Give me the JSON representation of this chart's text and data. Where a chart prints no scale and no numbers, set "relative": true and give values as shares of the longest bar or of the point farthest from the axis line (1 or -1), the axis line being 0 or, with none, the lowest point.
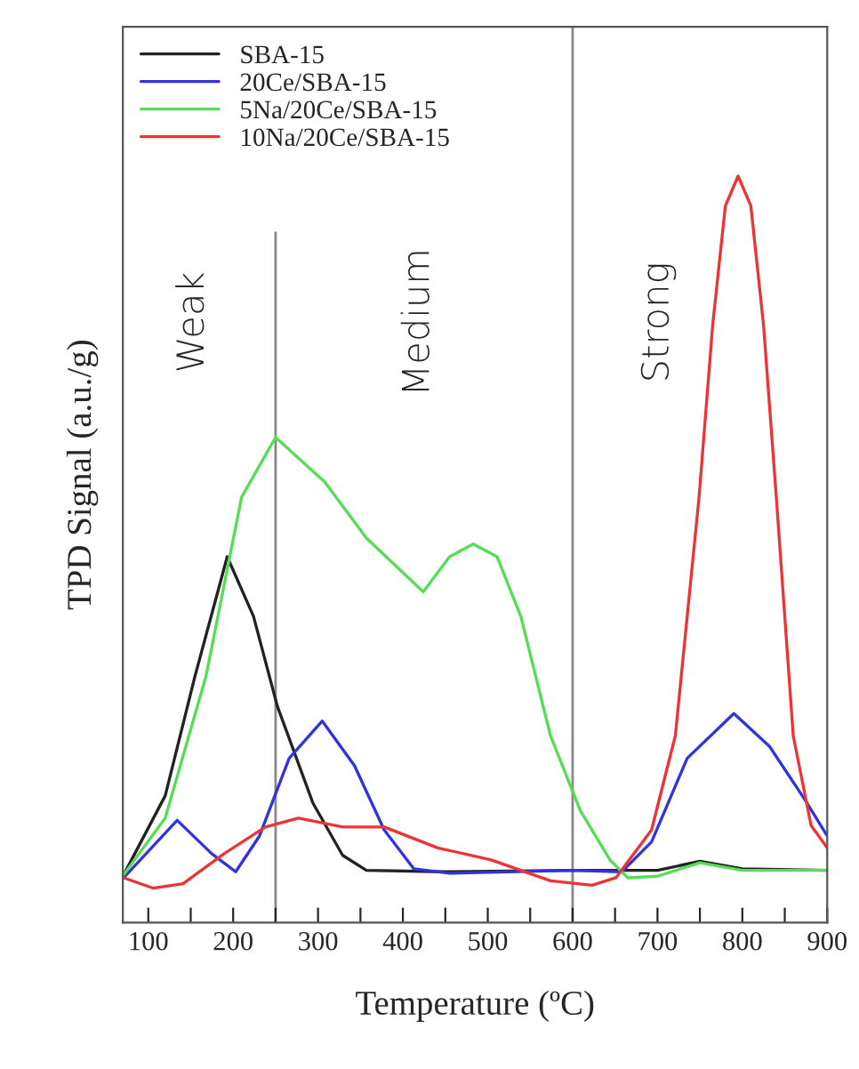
{
  "chart_data": {
    "type": "line",
    "xlabel": "Temperature (ºC)",
    "ylabel": "TPD Signal (a.u./g)",
    "relative": true,
    "xlim": [
      70,
      900
    ],
    "xticks": [
      100,
      {
        "value": 150,
        "label": null
      },
      200,
      {
        "value": 250,
        "label": null
      },
      300,
      {
        "value": 350,
        "label": null
      },
      400,
      {
        "value": 450,
        "label": null
      },
      500,
      {
        "value": 550,
        "label": null
      },
      600,
      {
        "value": 650,
        "label": null
      },
      700,
      {
        "value": 750,
        "label": null
      },
      800,
      {
        "value": 850,
        "label": null
      },
      900
    ],
    "tick_labels": "x",
    "legend": "top left",
    "grid": false,
    "marker": "none",
    "line_style": "solid",
    "series": [
      {
        "name": "SBA-15",
        "color": "#222222",
        "x": [
          71,
          120,
          155,
          193,
          224,
          252,
          294,
          329,
          357,
          450,
          600,
          700,
          750,
          800,
          900
        ],
        "values": [
          0.064,
          0.17,
          0.33,
          0.49,
          0.41,
          0.29,
          0.16,
          0.09,
          0.07,
          0.068,
          0.07,
          0.07,
          0.082,
          0.072,
          0.07
        ]
      },
      {
        "name": "20Ce/SBA-15",
        "color": "#3333dd",
        "x": [
          71,
          134,
          175,
          203,
          231,
          266,
          305,
          343,
          378,
          413,
          455,
          600,
          658,
          693,
          735,
          790,
          832,
          874,
          900
        ],
        "values": [
          0.06,
          0.137,
          0.092,
          0.068,
          0.116,
          0.22,
          0.27,
          0.21,
          0.124,
          0.072,
          0.066,
          0.07,
          0.068,
          0.108,
          0.22,
          0.28,
          0.236,
          0.164,
          0.116
        ]
      },
      {
        "name": "5Na/20Ce/SBA-15",
        "color": "#55dd55",
        "x": [
          71,
          120,
          168,
          210,
          250,
          308,
          357,
          424,
          455,
          483,
          511,
          539,
          574,
          609,
          644,
          665,
          700,
          750,
          800,
          900
        ],
        "values": [
          0.064,
          0.14,
          0.33,
          0.57,
          0.65,
          0.59,
          0.515,
          0.443,
          0.49,
          0.507,
          0.49,
          0.41,
          0.25,
          0.15,
          0.084,
          0.06,
          0.062,
          0.08,
          0.07,
          0.07
        ]
      },
      {
        "name": "10Na/20Ce/SBA-15",
        "color": "#ee3333",
        "x": [
          71,
          106,
          141,
          189,
          238,
          277,
          329,
          378,
          441,
          504,
          574,
          623,
          651,
          693,
          721,
          749,
          765,
          780,
          795,
          810,
          825,
          840,
          860,
          881,
          900
        ],
        "values": [
          0.06,
          0.046,
          0.052,
          0.092,
          0.128,
          0.14,
          0.128,
          0.128,
          0.1,
          0.084,
          0.056,
          0.05,
          0.06,
          0.124,
          0.25,
          0.57,
          0.8,
          0.96,
          1.0,
          0.96,
          0.8,
          0.57,
          0.25,
          0.13,
          0.1
        ]
      }
    ],
    "ref_lines": [
      {
        "axis": "x",
        "value": 250,
        "color": "#888888"
      },
      {
        "axis": "x",
        "value": 600,
        "color": "#888888"
      }
    ],
    "annotations": [
      "Weak",
      "Medium",
      "Strong"
    ]
  }
}
